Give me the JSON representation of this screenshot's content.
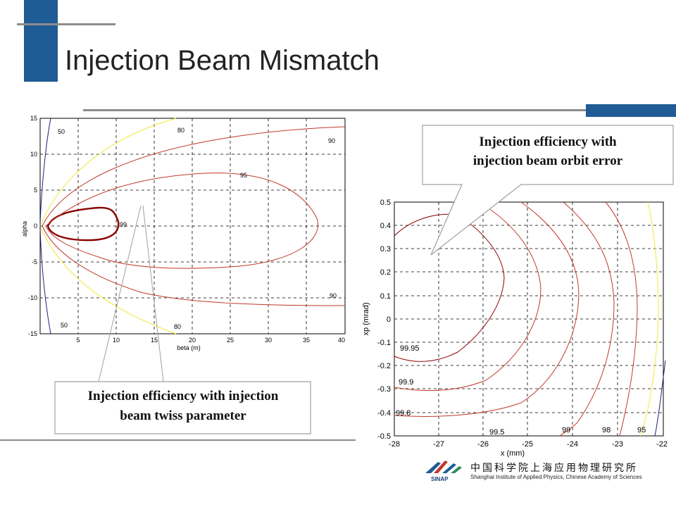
{
  "title": "Injection Beam Mismatch",
  "callouts": {
    "orbit_error": [
      "Injection efficiency with",
      "injection beam orbit error"
    ],
    "twiss": [
      "Injection efficiency with injection",
      "beam twiss parameter"
    ]
  },
  "colors": {
    "accent_blue": "#1f5b94",
    "rule_gray": "#8c8c8c",
    "contour_dark": "#8b0000",
    "contour_red": "#c0392b",
    "contour_yellow": "#f2ec5c",
    "contour_navy": "#1a237e"
  },
  "chart_data": [
    {
      "type": "contour",
      "xlabel": "beta (m)",
      "ylabel": "alpha",
      "xlim": [
        0,
        40
      ],
      "ylim": [
        -15,
        15
      ],
      "x_ticks": [
        "5",
        "10",
        "15",
        "20",
        "25",
        "30",
        "35",
        "40"
      ],
      "y_ticks": [
        "15",
        "10",
        "5",
        "0",
        "-5",
        "-10",
        "-15"
      ],
      "grid": true,
      "contour_levels": [
        "99",
        "95",
        "90",
        "90",
        "80",
        "80",
        "50",
        "50"
      ]
    },
    {
      "type": "contour",
      "xlabel": "x (mm)",
      "ylabel": "xp (mrad)",
      "xlim": [
        -28,
        -22
      ],
      "ylim": [
        -0.5,
        0.5
      ],
      "x_ticks": [
        "-28",
        "-27",
        "-26",
        "-25",
        "-24",
        "-23",
        "-22"
      ],
      "y_ticks": [
        "0.5",
        "0.4",
        "0.3",
        "0.2",
        "0.1",
        "0",
        "-0.1",
        "-0.2",
        "-0.3",
        "-0.4",
        "-0.5"
      ],
      "grid": true,
      "contour_levels": [
        "99.95",
        "99.9",
        "99.8",
        "99.5",
        "99",
        "98",
        "95"
      ]
    }
  ],
  "footer": {
    "institute_cn": "中国科学院上海应用物理研究所",
    "institute_en": "Shanghai Institute of Applied Physics, Chinese Academy of Sciences",
    "logo_text": "SINAP"
  }
}
